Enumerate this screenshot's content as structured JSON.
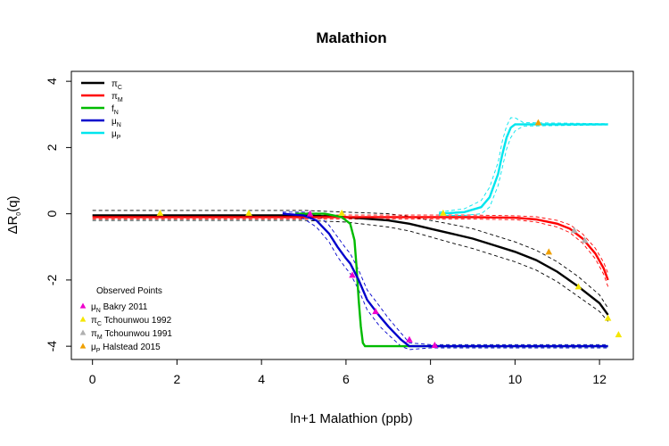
{
  "chart_data": {
    "type": "line",
    "title": "Malathion",
    "xlabel": "ln+1 Malathion (ppb)",
    "ylabel": {
      "main": "ΔR",
      "sub": "0",
      "tail": "(q)"
    },
    "xlim": [
      -0.5,
      12.8
    ],
    "ylim": [
      -4.4,
      4.3
    ],
    "x_ticks": [
      0,
      2,
      4,
      6,
      8,
      10,
      12
    ],
    "y_ticks": [
      -4,
      -2,
      0,
      2,
      4
    ],
    "grid": false,
    "legend": {
      "placement": "top-left",
      "entries": [
        {
          "main": "π",
          "sub": "C",
          "color": "#000000"
        },
        {
          "main": "π",
          "sub": "M",
          "color": "#ff0000"
        },
        {
          "main": "f",
          "sub": "N",
          "color": "#00bb00"
        },
        {
          "main": "μ",
          "sub": "N",
          "color": "#0000cc"
        },
        {
          "main": "μ",
          "sub": "P",
          "color": "#00e5ee"
        }
      ]
    },
    "points_legend": {
      "title": "Observed Points",
      "placement": "bottom-left",
      "entries": [
        {
          "main": "μ",
          "sub": "N",
          "text": " Bakry 2011",
          "color": "#ee00cc"
        },
        {
          "main": "π",
          "sub": "C",
          "text": " Tchounwou 1992",
          "color": "#f5e600"
        },
        {
          "main": "π",
          "sub": "M",
          "text": " Tchounwou 1991",
          "color": "#b0b0b0"
        },
        {
          "main": "μ",
          "sub": "P",
          "text": " Halstead 2015",
          "color": "#f0a000"
        }
      ]
    },
    "series": [
      {
        "key": "pi_C",
        "color": "#000000",
        "x": [
          0,
          2,
          4,
          5,
          6,
          7,
          7.5,
          8,
          8.5,
          9,
          9.5,
          10,
          10.5,
          11,
          11.5,
          12,
          12.2
        ],
        "y": [
          -0.05,
          -0.05,
          -0.05,
          -0.05,
          -0.1,
          -0.2,
          -0.3,
          -0.45,
          -0.6,
          -0.75,
          -0.95,
          -1.15,
          -1.4,
          -1.75,
          -2.2,
          -2.7,
          -3.05
        ],
        "band": [
          0.15,
          0.15,
          0.15,
          0.15,
          0.15,
          0.2,
          0.22,
          0.25,
          0.28,
          0.3,
          0.3,
          0.3,
          0.3,
          0.3,
          0.3,
          0.25,
          0.2
        ]
      },
      {
        "key": "pi_M",
        "color": "#ff0000",
        "x": [
          0,
          2,
          4,
          6,
          8,
          9,
          10,
          10.5,
          11,
          11.3,
          11.6,
          11.9,
          12.1,
          12.2
        ],
        "y": [
          -0.1,
          -0.1,
          -0.1,
          -0.1,
          -0.1,
          -0.1,
          -0.12,
          -0.17,
          -0.3,
          -0.45,
          -0.75,
          -1.2,
          -1.65,
          -2.0
        ],
        "band": [
          0.06,
          0.06,
          0.06,
          0.06,
          0.06,
          0.06,
          0.06,
          0.08,
          0.1,
          0.12,
          0.14,
          0.16,
          0.18,
          0.2
        ]
      },
      {
        "key": "f_N",
        "color": "#00bb00",
        "x": [
          4.8,
          5.5,
          5.9,
          6.1,
          6.2,
          6.25,
          6.3,
          6.35,
          6.4,
          6.45,
          7,
          8,
          12.2
        ],
        "y": [
          0,
          0,
          -0.1,
          -0.3,
          -0.8,
          -1.6,
          -2.6,
          -3.4,
          -3.9,
          -4.0,
          -4.0,
          -4.0,
          -4.0
        ],
        "band": []
      },
      {
        "key": "mu_N",
        "color": "#0000cc",
        "x": [
          4.5,
          5,
          5.3,
          5.6,
          5.8,
          6,
          6.1,
          6.3,
          6.5,
          6.8,
          7,
          7.3,
          7.5,
          8,
          12.2
        ],
        "y": [
          0,
          -0.05,
          -0.2,
          -0.6,
          -1.0,
          -1.35,
          -1.5,
          -2.0,
          -2.6,
          -3.1,
          -3.4,
          -3.8,
          -4.0,
          -4.0,
          -4.0
        ],
        "band": [
          0.05,
          0.1,
          0.2,
          0.25,
          0.3,
          0.3,
          0.3,
          0.3,
          0.3,
          0.3,
          0.25,
          0.2,
          0.1,
          0.05,
          0.05
        ]
      },
      {
        "key": "mu_P",
        "color": "#00e5ee",
        "x": [
          8.2,
          8.8,
          9.2,
          9.4,
          9.6,
          9.7,
          9.8,
          9.9,
          10,
          10.2,
          12.2
        ],
        "y": [
          0,
          0.05,
          0.2,
          0.5,
          1.2,
          1.8,
          2.3,
          2.6,
          2.7,
          2.7,
          2.7
        ],
        "band": [
          0.05,
          0.1,
          0.2,
          0.3,
          0.35,
          0.4,
          0.35,
          0.3,
          0.2,
          0.05,
          0.02
        ]
      }
    ],
    "observed_points": [
      {
        "x": 5.15,
        "y": 0.0,
        "color": "#ee00cc"
      },
      {
        "x": 6.15,
        "y": -1.85,
        "color": "#ee00cc"
      },
      {
        "x": 6.7,
        "y": -2.95,
        "color": "#ee00cc"
      },
      {
        "x": 7.5,
        "y": -3.8,
        "color": "#ee00cc"
      },
      {
        "x": 8.1,
        "y": -3.97,
        "color": "#ee00cc"
      },
      {
        "x": 1.6,
        "y": 0.02,
        "color": "#f5e600"
      },
      {
        "x": 3.7,
        "y": 0.02,
        "color": "#f5e600"
      },
      {
        "x": 5.9,
        "y": 0.02,
        "color": "#f5e600"
      },
      {
        "x": 8.3,
        "y": 0.02,
        "color": "#f5e600"
      },
      {
        "x": 11.5,
        "y": -2.2,
        "color": "#f5e600"
      },
      {
        "x": 12.2,
        "y": -3.15,
        "color": "#f5e600"
      },
      {
        "x": 12.45,
        "y": -3.65,
        "color": "#f5e600"
      },
      {
        "x": 11.4,
        "y": -0.5,
        "color": "#b0b0b0"
      },
      {
        "x": 11.65,
        "y": -0.8,
        "color": "#b0b0b0"
      },
      {
        "x": 10.55,
        "y": 2.75,
        "color": "#f0a000"
      },
      {
        "x": 10.8,
        "y": -1.15,
        "color": "#f0a000"
      }
    ]
  }
}
